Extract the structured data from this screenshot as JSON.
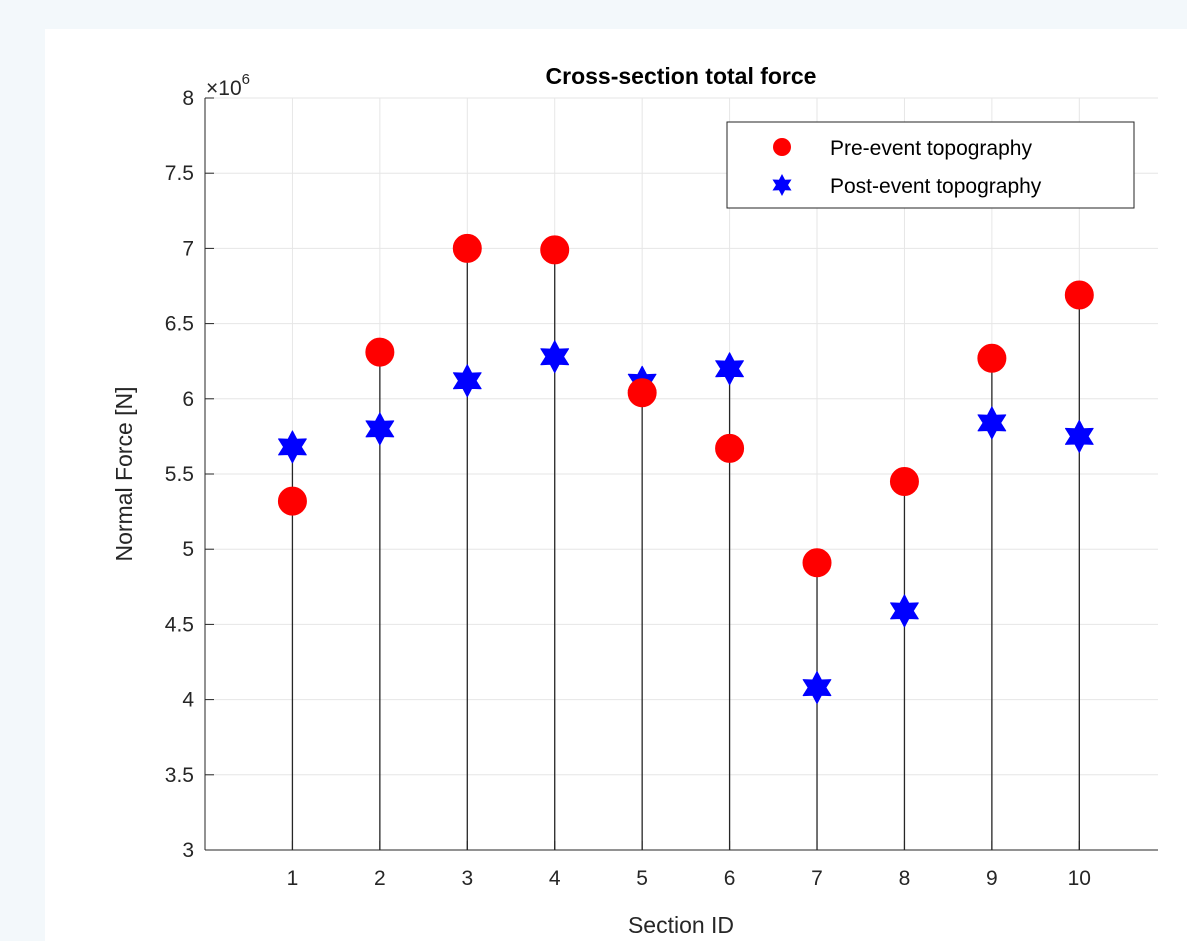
{
  "chart_data": {
    "type": "scatter",
    "title": "Cross-section total force",
    "xlabel": "Section ID",
    "ylabel": "Normal Force [N]",
    "y_exponent_label": "×10",
    "y_exponent": "6",
    "x_ticks": [
      "1",
      "2",
      "3",
      "4",
      "5",
      "6",
      "7",
      "8",
      "9",
      "10"
    ],
    "y_ticks": [
      "3",
      "3.5",
      "4",
      "4.5",
      "5",
      "5.5",
      "6",
      "6.5",
      "7",
      "7.5",
      "8"
    ],
    "xlim": [
      0,
      10.9
    ],
    "ylim": [
      3,
      8
    ],
    "grid": true,
    "legend_position": "top-right",
    "categories": [
      1,
      2,
      3,
      4,
      5,
      6,
      7,
      8,
      9,
      10
    ],
    "series": [
      {
        "name": "Pre-event topography",
        "marker": "circle",
        "color": "#ff0000",
        "values": [
          5.32,
          6.31,
          7.0,
          6.99,
          6.04,
          5.67,
          4.91,
          5.45,
          6.27,
          6.69
        ]
      },
      {
        "name": "Post-event topography",
        "marker": "hexagram",
        "color": "#0000ff",
        "values": [
          5.68,
          5.8,
          6.12,
          6.28,
          6.11,
          6.2,
          4.08,
          4.59,
          5.84,
          5.75
        ]
      }
    ],
    "stem_color": "#262626"
  }
}
